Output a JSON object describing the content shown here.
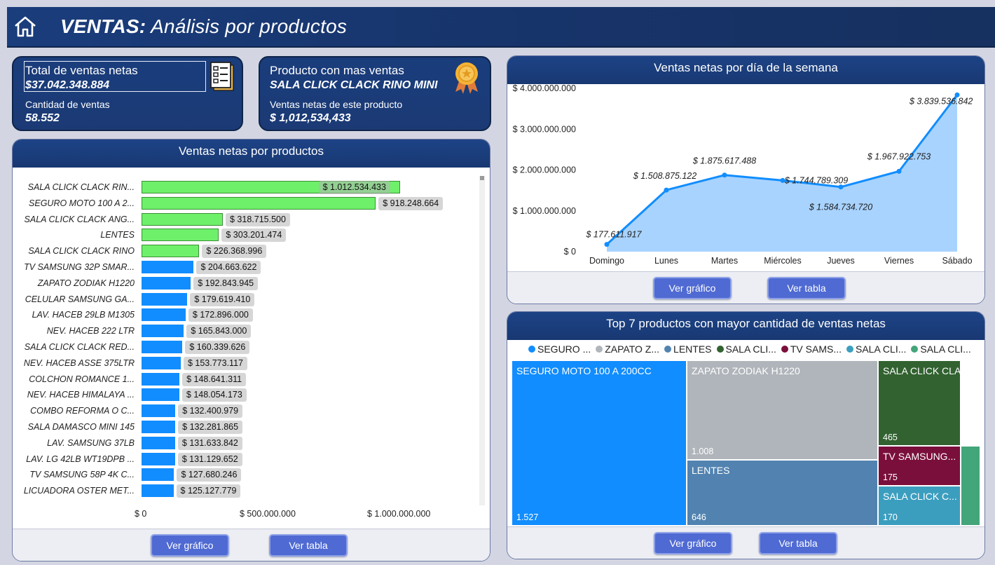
{
  "header": {
    "title_bold": "VENTAS:",
    "title_light": "Análisis por productos"
  },
  "kpi1": {
    "total_label": "Total de ventas netas",
    "total_value": "$37.042.348.884",
    "count_label": "Cantidad de ventas",
    "count_value": "58.552"
  },
  "kpi2": {
    "top_label": "Producto con mas ventas",
    "top_product": "SALA CLICK CLACK RINO MINI",
    "sales_label": "Ventas netas de este producto",
    "sales_value": "$ 1,012,534,433"
  },
  "bar_panel": {
    "title": "Ventas netas por productos",
    "btn_chart": "Ver gráfico",
    "btn_table": "Ver tabla"
  },
  "line_panel": {
    "title": "Ventas netas por día de la semana",
    "btn_chart": "Ver gráfico",
    "btn_table": "Ver tabla"
  },
  "tree_panel": {
    "title": "Top 7 productos con mayor cantidad de ventas netas",
    "btn_chart": "Ver gráfico",
    "btn_table": "Ver tabla",
    "legend": [
      {
        "label": "SEGURO ...",
        "color": "#118dff"
      },
      {
        "label": "ZAPATO Z...",
        "color": "#b0b5bb"
      },
      {
        "label": "LENTES",
        "color": "#5283b0"
      },
      {
        "label": "SALA CLI...",
        "color": "#326230"
      },
      {
        "label": "TV SAMS...",
        "color": "#7a0f3c"
      },
      {
        "label": "SALA CLI...",
        "color": "#3c9ebf"
      },
      {
        "label": "SALA CLI...",
        "color": "#43a57a"
      }
    ],
    "cells": [
      {
        "name": "SEGURO MOTO 100 A 200CC",
        "value": "1.527",
        "color": "#118dff"
      },
      {
        "name": "ZAPATO ZODIAK H1220",
        "value": "1.008",
        "color": "#b0b5bb"
      },
      {
        "name": "LENTES",
        "value": "646",
        "color": "#5283b0"
      },
      {
        "name": "SALA CLICK CLAC...",
        "value": "465",
        "color": "#326230"
      },
      {
        "name": "TV SAMSUNG...",
        "value": "175",
        "color": "#7a0f3c"
      },
      {
        "name": "SALA CLICK C...",
        "value": "170",
        "color": "#3c9ebf"
      },
      {
        "name": "",
        "value": "",
        "color": "#43a57a"
      }
    ]
  },
  "chart_data": [
    {
      "type": "bar",
      "orientation": "horizontal",
      "title": "Ventas netas por productos",
      "categories": [
        "SALA CLICK CLACK RIN...",
        "SEGURO MOTO 100 A 2...",
        "SALA CLICK CLACK ANG...",
        "LENTES",
        "SALA CLICK CLACK RINO",
        "TV SAMSUNG 32P SMAR...",
        "ZAPATO ZODIAK H1220",
        "CELULAR SAMSUNG GA...",
        "LAV. HACEB 29LB M1305",
        "NEV. HACEB 222 LTR",
        "SALA CLICK CLACK RED...",
        "NEV. HACEB ASSE 375LTR",
        "COLCHON ROMANCE 1...",
        "NEV. HACEB HIMALAYA ...",
        "COMBO REFORMA O C...",
        "SALA DAMASCO MINI 145",
        "LAV. SAMSUNG 37LB",
        "LAV. LG 42LB WT19DPB ...",
        "TV SAMSUNG 58P 4K C...",
        "LICUADORA OSTER MET..."
      ],
      "values": [
        1012534433,
        918248664,
        318715500,
        303201474,
        226368996,
        204663622,
        192843945,
        179619410,
        172896000,
        165843000,
        160339626,
        153773117,
        148641311,
        148054173,
        132400979,
        132281865,
        131633842,
        131129652,
        127680246,
        125127779
      ],
      "value_labels": [
        "$ 1.012.534.433",
        "$ 918.248.664",
        "$ 318.715.500",
        "$ 303.201.474",
        "$ 226.368.996",
        "$ 204.663.622",
        "$ 192.843.945",
        "$ 179.619.410",
        "$ 172.896.000",
        "$ 165.843.000",
        "$ 160.339.626",
        "$ 153.773.117",
        "$ 148.641.311",
        "$ 148.054.173",
        "$ 132.400.979",
        "$ 132.281.865",
        "$ 131.633.842",
        "$ 131.129.652",
        "$ 127.680.246",
        "$ 125.127.779"
      ],
      "highlight_top": 5,
      "colors": {
        "highlight": "#6ef06a",
        "default": "#118dff"
      },
      "xticks": [
        "$ 0",
        "$ 500.000.000",
        "$ 1.000.000.000"
      ],
      "xlim": [
        0,
        1100000000
      ]
    },
    {
      "type": "area",
      "title": "Ventas netas por día de la semana",
      "categories": [
        "Domingo",
        "Lunes",
        "Martes",
        "Miércoles",
        "Jueves",
        "Viernes",
        "Sábado"
      ],
      "values": [
        177611917,
        1508875122,
        1875617488,
        1744789309,
        1584734720,
        1967922753,
        3839536842
      ],
      "value_labels": [
        "$ 177.611.917",
        "$ 1.508.875.122",
        "$ 1.875.617.488",
        "$ 1.744.789.309",
        "$ 1.584.734.720",
        "$ 1.967.922.753",
        "$ 3.839.536.842"
      ],
      "yticks": [
        "$ 0",
        "$ 1.000.000.000",
        "$ 2.000.000.000",
        "$ 3.000.000.000",
        "$ 4.000.000.000"
      ],
      "ylim": [
        0,
        4000000000
      ],
      "colors": {
        "line": "#118dff",
        "fill": "#a8d3ff"
      }
    },
    {
      "type": "treemap",
      "title": "Top 7 productos con mayor cantidad de ventas netas",
      "labels": [
        "SEGURO MOTO 100 A 200CC",
        "ZAPATO ZODIAK H1220",
        "LENTES",
        "SALA CLICK CLAC...",
        "TV SAMSUNG...",
        "SALA CLICK C...",
        ""
      ],
      "values": [
        1527,
        1008,
        646,
        465,
        175,
        170,
        120
      ]
    }
  ]
}
